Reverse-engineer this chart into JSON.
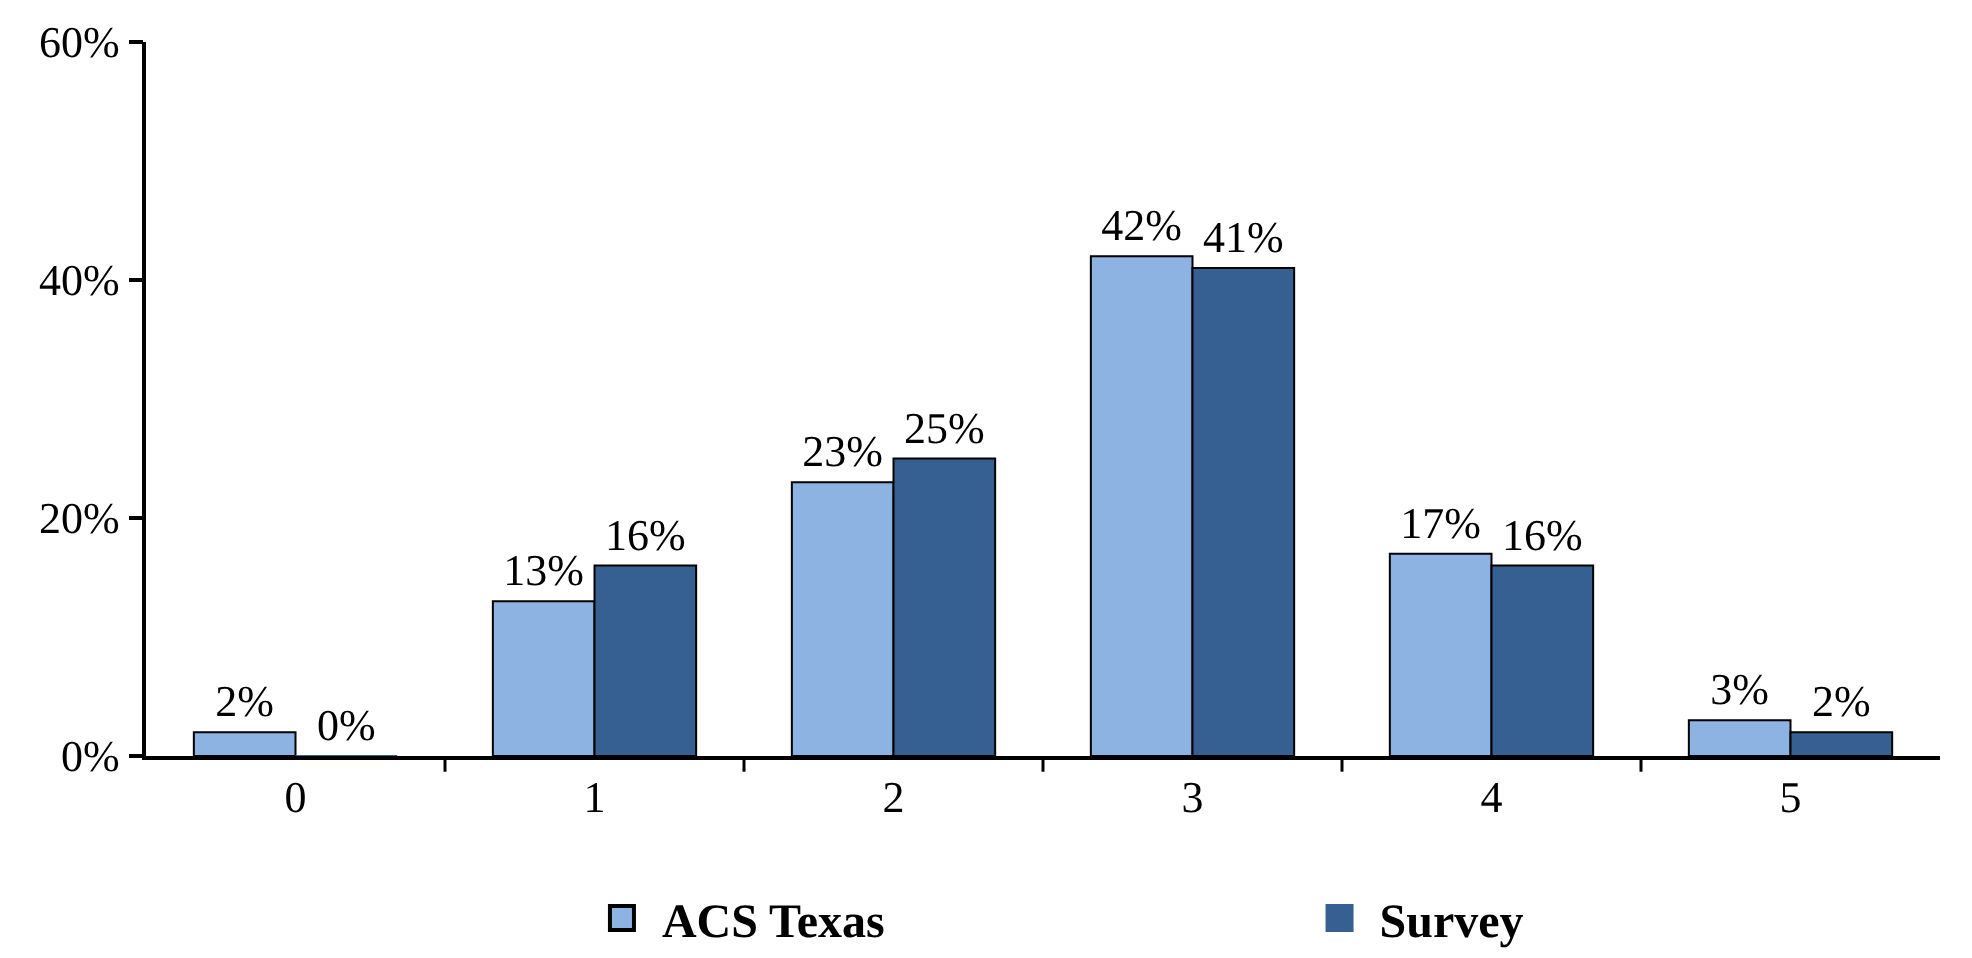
{
  "chart_data": {
    "type": "bar",
    "categories": [
      "0",
      "1",
      "2",
      "3",
      "4",
      "5"
    ],
    "series": [
      {
        "name": "ACS Texas",
        "color": "#8db3e2",
        "values": [
          2,
          13,
          23,
          42,
          17,
          3
        ],
        "value_labels": [
          "2%",
          "13%",
          "23%",
          "42%",
          "17%",
          "3%"
        ]
      },
      {
        "name": "Survey",
        "color": "#366092",
        "values": [
          0,
          16,
          25,
          41,
          16,
          2
        ],
        "value_labels": [
          "0%",
          "16%",
          "25%",
          "41%",
          "16%",
          "2%"
        ]
      }
    ],
    "ylim": [
      0,
      60
    ],
    "yticks": [
      {
        "value": 0,
        "label": "0%"
      },
      {
        "value": 20,
        "label": "20%"
      },
      {
        "value": 40,
        "label": "40%"
      },
      {
        "value": 60,
        "label": "60%"
      }
    ],
    "grid": false,
    "legend": "bottom"
  }
}
